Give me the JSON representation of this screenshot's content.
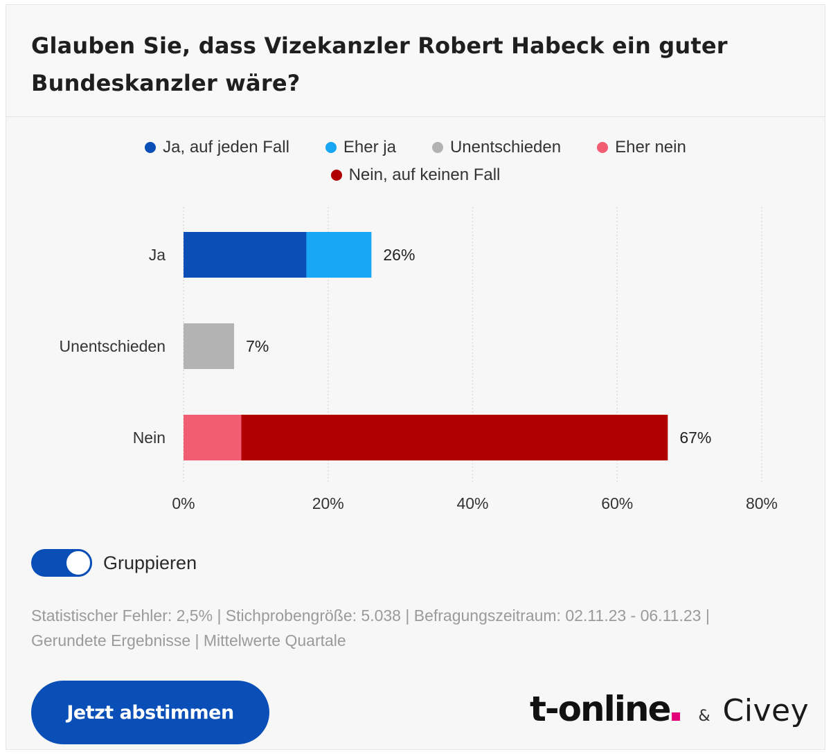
{
  "title": "Glauben Sie, dass Vizekanzler Robert Habeck ein guter Bundeskanzler wäre?",
  "legend": [
    {
      "label": "Ja, auf jeden Fall",
      "color": "#0a4fb8"
    },
    {
      "label": "Eher ja",
      "color": "#16a6f3"
    },
    {
      "label": "Unentschieden",
      "color": "#b3b3b3"
    },
    {
      "label": "Eher nein",
      "color": "#f35d74"
    },
    {
      "label": "Nein, auf keinen Fall",
      "color": "#b00000"
    }
  ],
  "chart_data": {
    "type": "bar",
    "orientation": "horizontal",
    "stacked": true,
    "categories": [
      "Ja",
      "Unentschieden",
      "Nein"
    ],
    "series": [
      {
        "name": "Ja, auf jeden Fall",
        "values": [
          17,
          0,
          0
        ],
        "color": "#0a4fb8"
      },
      {
        "name": "Eher ja",
        "values": [
          9,
          0,
          0
        ],
        "color": "#16a6f3"
      },
      {
        "name": "Unentschieden",
        "values": [
          0,
          7,
          0
        ],
        "color": "#b3b3b3"
      },
      {
        "name": "Eher nein",
        "values": [
          0,
          0,
          8
        ],
        "color": "#f35d74"
      },
      {
        "name": "Nein, auf keinen Fall",
        "values": [
          0,
          0,
          59
        ],
        "color": "#b00000"
      }
    ],
    "totals": [
      26,
      7,
      67
    ],
    "total_labels": [
      "26%",
      "7%",
      "67%"
    ],
    "xlim": [
      0,
      80
    ],
    "xticks": [
      0,
      20,
      40,
      60,
      80
    ],
    "xtick_labels": [
      "0%",
      "20%",
      "40%",
      "60%",
      "80%"
    ],
    "grid": true,
    "legend_position": "top"
  },
  "toggle": {
    "label": "Gruppieren",
    "on": true
  },
  "footnote": {
    "line1": "Statistischer Fehler: 2,5% | Stichprobengröße: 5.038 | Befragungszeitraum: 02.11.23 - 06.11.23 |",
    "line2": "Gerundete Ergebnisse | Mittelwerte Quartale"
  },
  "vote_button": {
    "label": "Jetzt abstimmen"
  },
  "brand": {
    "tonline": "t-online",
    "amp": "&",
    "civey": "Civey"
  }
}
